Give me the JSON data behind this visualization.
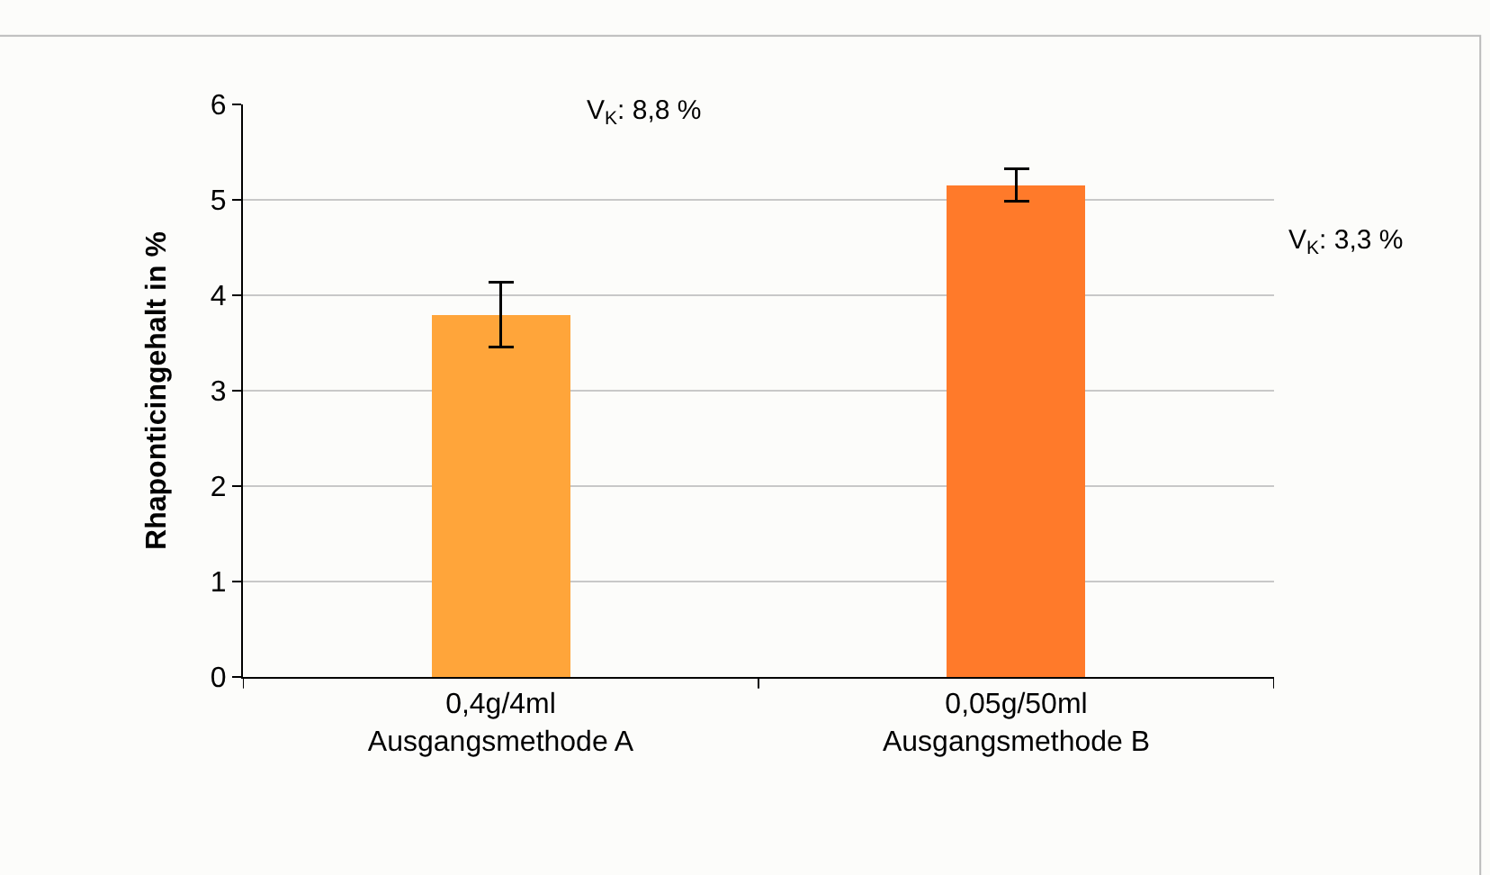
{
  "chart_data": {
    "type": "bar",
    "ylabel": "Rhaponticingehalt in %",
    "categories": [
      "0,4g/4ml\nAusgangsmethode A",
      "0,05g/50ml\nAusgangsmethode B"
    ],
    "values": [
      3.8,
      5.16
    ],
    "colors": [
      "#ffa53a",
      "#ff7a2a"
    ],
    "errors": [
      0.34,
      0.17
    ],
    "ylim": [
      0,
      6
    ],
    "yticks": [
      0,
      1,
      2,
      3,
      4,
      5,
      6
    ],
    "grid": "y",
    "annotations": [
      "V$_{K}$: 8,8 %",
      "V$_{K}$: 3,3 %"
    ]
  }
}
